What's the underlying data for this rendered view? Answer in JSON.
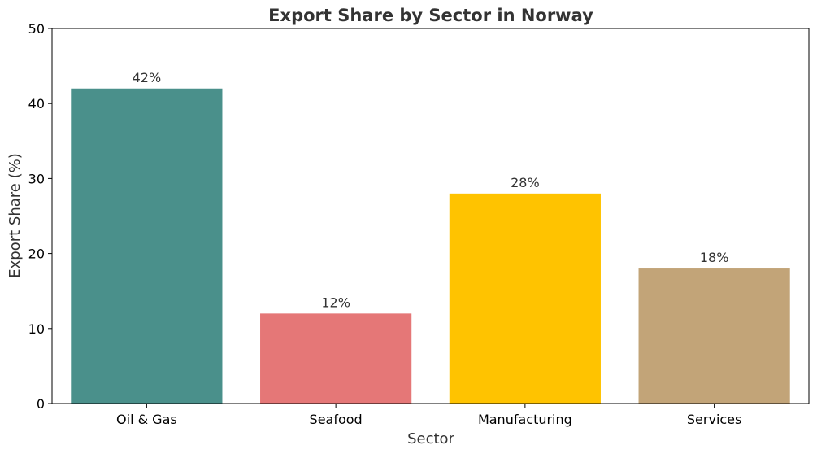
{
  "chart_data": {
    "type": "bar",
    "title": "Export Share by Sector in Norway",
    "xlabel": "Sector",
    "ylabel": "Export Share (%)",
    "categories": [
      "Oil & Gas",
      "Seafood",
      "Manufacturing",
      "Services"
    ],
    "values": [
      42,
      12,
      28,
      18
    ],
    "data_labels": [
      "42%",
      "12%",
      "28%",
      "18%"
    ],
    "colors": [
      "#4a908b",
      "#e57777",
      "#ffc300",
      "#c2a478"
    ],
    "ylim": [
      0,
      50
    ],
    "yticks": [
      0,
      10,
      20,
      30,
      40,
      50
    ],
    "grid": false,
    "legend": "none"
  }
}
